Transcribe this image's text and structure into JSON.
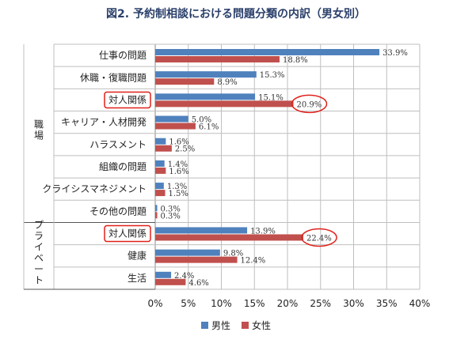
{
  "chart_data": {
    "type": "bar",
    "title": "図2. 予約制相談における問題分類の内訳（男女別）",
    "categories": [
      "仕事の問題",
      "休職・復職問題",
      "対人関係",
      "キャリア・人材開発",
      "ハラスメント",
      "組織の問題",
      "クライシスマネジメント",
      "その他の問題",
      "対人関係",
      "健康",
      "生活"
    ],
    "groups": [
      {
        "label": "職場",
        "categories": [
          0,
          1,
          2,
          3,
          4,
          5,
          6,
          7
        ]
      },
      {
        "label": "プライベート",
        "categories": [
          8,
          9,
          10
        ]
      }
    ],
    "series": [
      {
        "name": "男性",
        "color": "#4f81bd",
        "values": [
          33.9,
          15.3,
          15.1,
          5.0,
          1.6,
          1.4,
          1.3,
          0.3,
          13.9,
          9.8,
          2.4
        ],
        "labels": [
          "33.9%",
          "15.3%",
          "15.1%",
          "5.0%",
          "1.6%",
          "1.4%",
          "1.3%",
          "0.3%",
          "13.9%",
          "9.8%",
          "2.4%"
        ]
      },
      {
        "name": "女性",
        "color": "#c0504d",
        "values": [
          18.8,
          8.9,
          20.9,
          6.1,
          2.5,
          1.6,
          1.5,
          0.3,
          22.4,
          12.4,
          4.6
        ],
        "labels": [
          "18.8%",
          "8.9%",
          "20.9%",
          "6.1%",
          "2.5%",
          "1.6%",
          "1.5%",
          "0.3%",
          "22.4%",
          "12.4%",
          "4.6%"
        ]
      }
    ],
    "xlim": [
      0,
      40
    ],
    "xticks": [
      "0%",
      "5%",
      "10%",
      "15%",
      "20%",
      "25%",
      "30%",
      "35%",
      "40%"
    ],
    "highlighted_categories": [
      2,
      8
    ],
    "circled_labels": [
      {
        "series": 1,
        "category": 2
      },
      {
        "series": 1,
        "category": 8
      }
    ],
    "grid": true,
    "legend_position": "bottom"
  }
}
